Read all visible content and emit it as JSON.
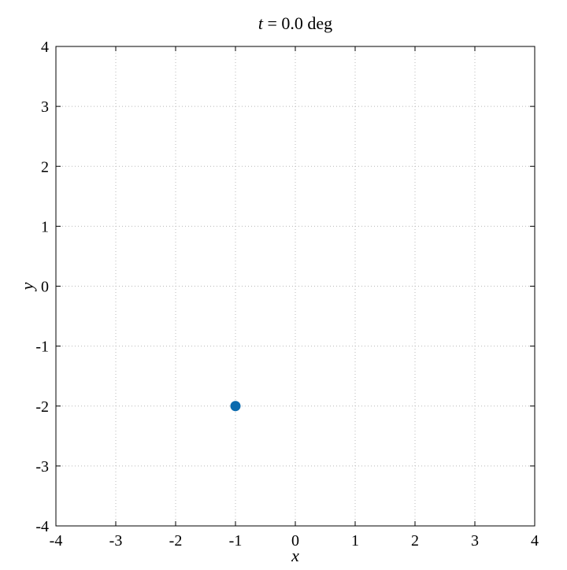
{
  "chart_data": {
    "type": "scatter",
    "title_var": "t",
    "title_rest": " = 0.0 deg",
    "xlabel": "x",
    "ylabel": "y",
    "xlim": [
      -4,
      4
    ],
    "ylim": [
      -4,
      4
    ],
    "x_ticks": [
      -4,
      -3,
      -2,
      -1,
      0,
      1,
      2,
      3,
      4
    ],
    "y_ticks": [
      -4,
      -3,
      -2,
      -1,
      0,
      1,
      2,
      3,
      4
    ],
    "x_tick_labels": [
      "-4",
      "-3",
      "-2",
      "-1",
      "0",
      "1",
      "2",
      "3",
      "4"
    ],
    "y_tick_labels": [
      "-4",
      "-3",
      "-2",
      "-1",
      "0",
      "1",
      "2",
      "3",
      "4"
    ],
    "grid": true,
    "series": [
      {
        "x": [
          -1
        ],
        "y": [
          -2
        ],
        "color": "#0A6AAE"
      }
    ]
  }
}
